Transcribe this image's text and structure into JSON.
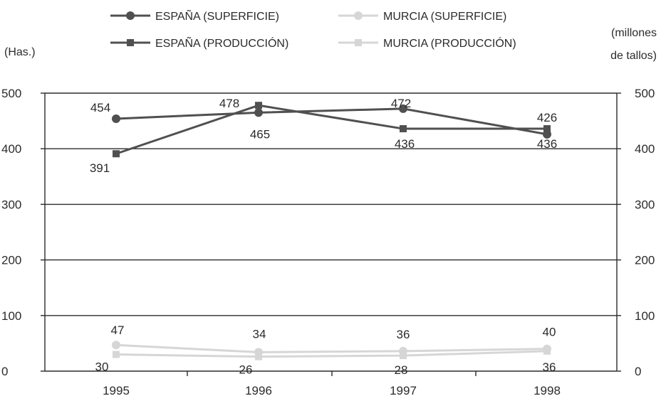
{
  "chart_data": {
    "type": "line",
    "categories": [
      "1995",
      "1996",
      "1997",
      "1998"
    ],
    "ylabel_left": "(Has.)",
    "ylabel_right": [
      "(millones",
      "de tallos)"
    ],
    "ylim": [
      0,
      500
    ],
    "yticks": [
      0,
      100,
      200,
      300,
      400,
      500
    ],
    "grid": true,
    "legend_position": "top",
    "series": [
      {
        "name": "ESPAÑA (SUPERFICIE)",
        "values": [
          454,
          465,
          472,
          426
        ],
        "color": "#505050",
        "marker": "circle"
      },
      {
        "name": "MURCIA (SUPERFICIE)",
        "values": [
          47,
          34,
          36,
          40
        ],
        "color": "#d6d6d6",
        "marker": "circle"
      },
      {
        "name": "ESPAÑA (PRODUCCIÓN)",
        "values": [
          391,
          478,
          436,
          436
        ],
        "color": "#505050",
        "marker": "square"
      },
      {
        "name": "MURCIA (PRODUCCIÓN)",
        "values": [
          30,
          26,
          28,
          36
        ],
        "color": "#d6d6d6",
        "marker": "square"
      }
    ]
  }
}
